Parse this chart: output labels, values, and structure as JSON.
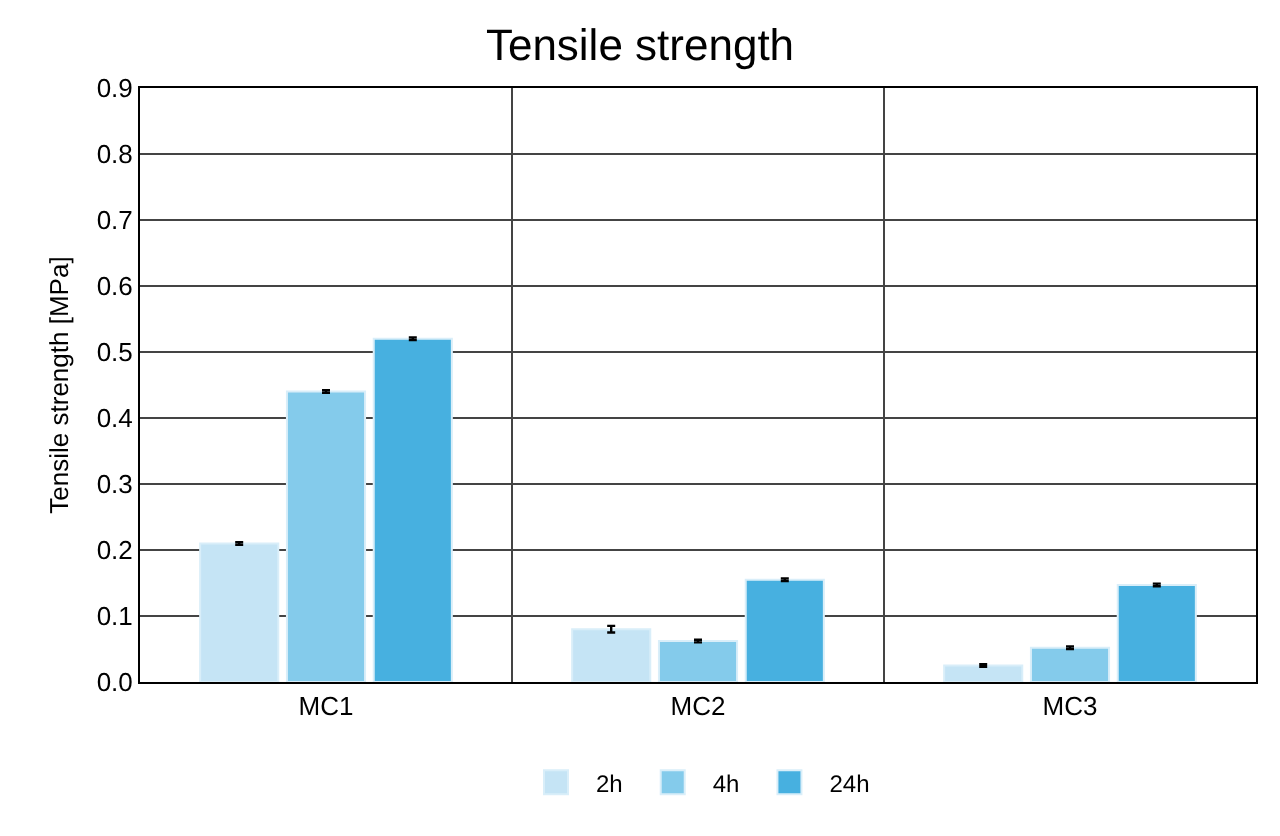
{
  "chart_data": {
    "type": "bar",
    "title": "Tensile strength",
    "ylabel": "Tensile strength [MPa]",
    "categories": [
      "MC1",
      "MC2",
      "MC3"
    ],
    "series": [
      {
        "name": "2h",
        "color": "#c5e4f5",
        "values": [
          0.21,
          0.08,
          0.025
        ],
        "errors": [
          0.002,
          0.005,
          0.002
        ]
      },
      {
        "name": "4h",
        "color": "#84cbeb",
        "values": [
          0.44,
          0.062,
          0.052
        ],
        "errors": [
          0.002,
          0.002,
          0.002
        ]
      },
      {
        "name": "24h",
        "color": "#47b0e0",
        "values": [
          0.52,
          0.155,
          0.147
        ],
        "errors": [
          0.002,
          0.002,
          0.002
        ]
      }
    ],
    "ylim": [
      0,
      0.9
    ],
    "yticks": [
      {
        "value": 0,
        "label": "0.0"
      },
      0.1,
      0.2,
      0.3,
      0.4,
      0.5,
      0.6,
      0.7,
      0.8,
      0.9
    ],
    "grid": true,
    "legend": "bottom"
  }
}
